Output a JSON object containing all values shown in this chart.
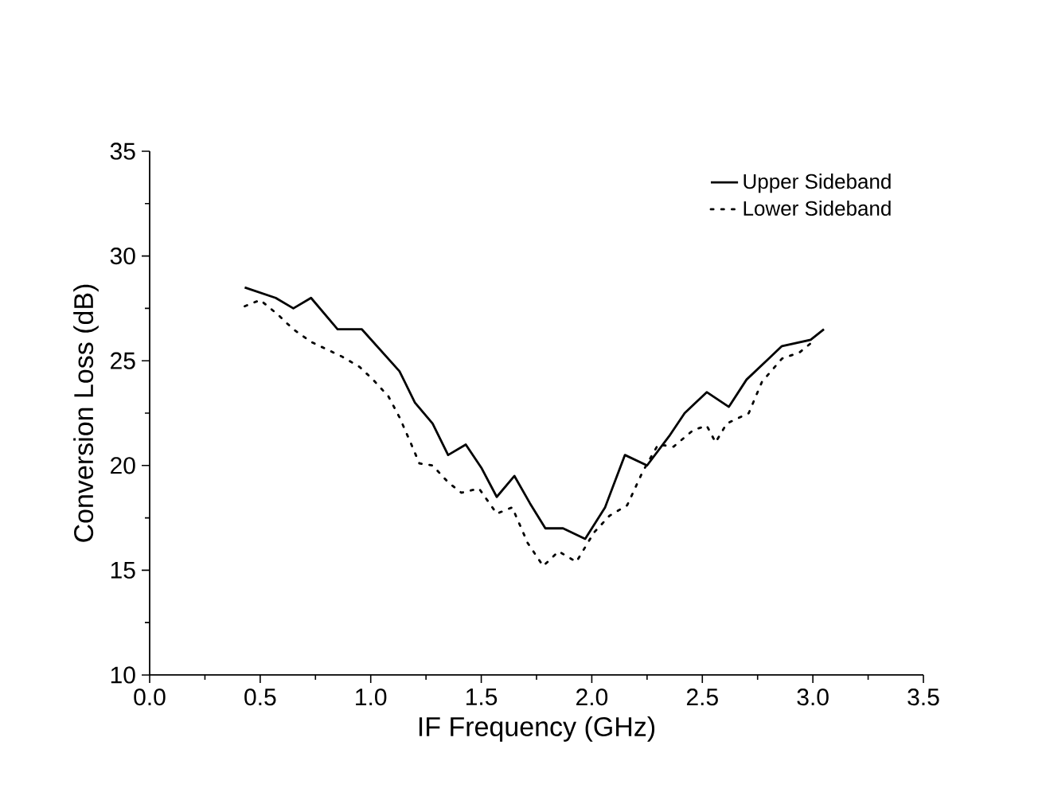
{
  "chart_data": {
    "type": "line",
    "xlabel": "IF Frequency (GHz)",
    "ylabel": "Conversion Loss (dB)",
    "xlim": [
      0,
      3.5
    ],
    "ylim": [
      10,
      35
    ],
    "xticks": [
      {
        "value": 0,
        "label": "0.0"
      },
      0.5,
      {
        "value": 1,
        "label": "1.0"
      },
      1.5,
      {
        "value": 2,
        "label": "2.0"
      },
      2.5,
      {
        "value": 3,
        "label": "3.0"
      },
      3.5
    ],
    "yticks": [
      10,
      15,
      20,
      25,
      30,
      35
    ],
    "legend": "top right",
    "grid": false,
    "marker": "none",
    "series": [
      {
        "name": "Upper Sideband",
        "color": "#000000",
        "line_style": "solid",
        "x": [
          0.43,
          0.57,
          0.65,
          0.73,
          0.85,
          0.96,
          1.13,
          1.2,
          1.28,
          1.35,
          1.43,
          1.5,
          1.57,
          1.65,
          1.72,
          1.79,
          1.87,
          1.97,
          2.06,
          2.15,
          2.25,
          2.35,
          2.42,
          2.52,
          2.62,
          2.7,
          2.79,
          2.86,
          2.99,
          3.05
        ],
        "values": [
          28.5,
          28.0,
          27.5,
          28.0,
          26.5,
          26.5,
          24.5,
          23.0,
          22.0,
          20.5,
          21.0,
          19.9,
          18.5,
          19.5,
          18.2,
          17.0,
          17.0,
          16.5,
          18.0,
          20.5,
          20.0,
          21.4,
          22.5,
          23.5,
          22.8,
          24.1,
          25.0,
          25.7,
          26.0,
          26.5
        ]
      },
      {
        "name": "Lower Sideband",
        "color": "#000000",
        "line_style": "dotted",
        "x": [
          0.43,
          0.5,
          0.58,
          0.65,
          0.73,
          0.87,
          0.95,
          1.01,
          1.08,
          1.13,
          1.18,
          1.22,
          1.28,
          1.35,
          1.41,
          1.49,
          1.57,
          1.64,
          1.71,
          1.78,
          1.85,
          1.93,
          2.01,
          2.08,
          2.16,
          2.23,
          2.3,
          2.37,
          2.46,
          2.52,
          2.56,
          2.61,
          2.71,
          2.77,
          2.86,
          2.94,
          3.01
        ],
        "values": [
          27.6,
          27.9,
          27.2,
          26.5,
          25.9,
          25.2,
          24.7,
          24.1,
          23.3,
          22.3,
          21.1,
          20.1,
          20.0,
          19.2,
          18.7,
          18.9,
          17.7,
          18.0,
          16.3,
          15.2,
          15.9,
          15.4,
          16.8,
          17.6,
          18.1,
          19.7,
          21.0,
          20.9,
          21.7,
          21.9,
          21.1,
          22.0,
          22.5,
          24.0,
          25.1,
          25.4,
          26.0
        ]
      }
    ]
  }
}
